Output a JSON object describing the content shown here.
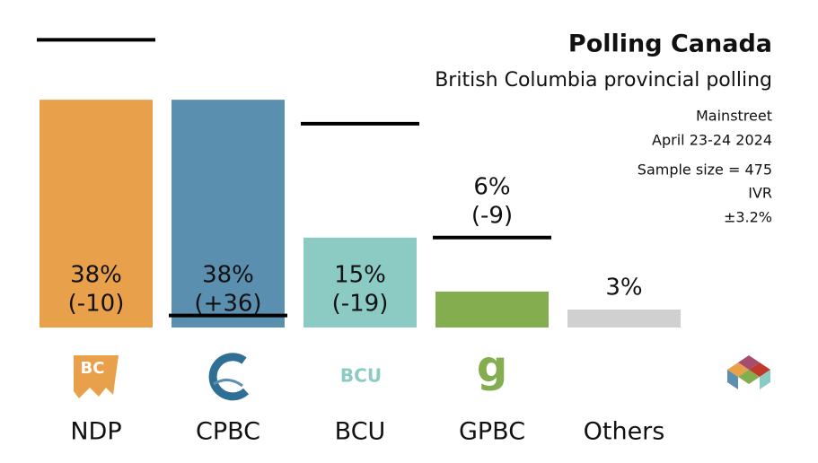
{
  "chart_data": {
    "type": "bar",
    "title": "Polling Canada",
    "subtitle": "British Columbia provincial polling",
    "pollster": "Mainstreet",
    "date": "April 23-24 2024",
    "sample_size": "Sample size = 475",
    "method": "IVR",
    "margin": "±3.2%",
    "categories": [
      "NDP",
      "CPBC",
      "BCU",
      "GPBC",
      "Others"
    ],
    "values": [
      38,
      38,
      15,
      6,
      3
    ],
    "value_labels": [
      "38%",
      "38%",
      "15%",
      "6%",
      "3%"
    ],
    "changes": [
      -10,
      36,
      -19,
      -9,
      null
    ],
    "change_labels": [
      "(-10)",
      "(+36)",
      "(-19)",
      "(-9)",
      null
    ],
    "previous": [
      48,
      2,
      34,
      15,
      null
    ],
    "colors": [
      "#e8a04a",
      "#5b8fb0",
      "#8ccbc4",
      "#83ad4f",
      "#d0d0d0"
    ],
    "ylim": [
      0,
      50
    ]
  }
}
